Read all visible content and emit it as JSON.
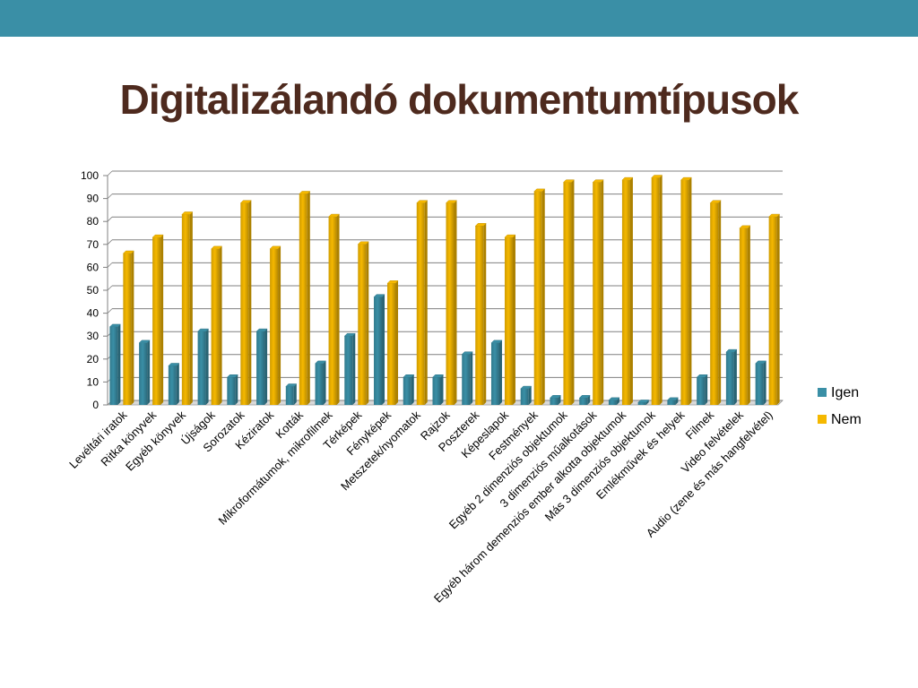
{
  "slide": {
    "title": "Digitalizálandó dokumentumtípusok",
    "accent_color": "#3a8fa6",
    "title_color": "#4e2a1e"
  },
  "chart_data": {
    "type": "bar",
    "title": "",
    "xlabel": "",
    "ylabel": "",
    "ylim": [
      0,
      100
    ],
    "yticks": [
      0,
      10,
      20,
      30,
      40,
      50,
      60,
      70,
      80,
      90,
      100
    ],
    "grid": true,
    "legend_position": "right",
    "categories": [
      "Levéltári iratok",
      "Ritka könyvek",
      "Egyéb könyvek",
      "Újságok",
      "Sorozatok",
      "Kéziratok",
      "Kották",
      "Mikroformátumok, mikrofilmek",
      "Térképek",
      "Fényképek",
      "Metszetek/nyomatok",
      "Rajzok",
      "Poszterek",
      "Képeslapok",
      "Festmények",
      "Egyéb 2 dimenziós objektumok",
      "3 dimenziós műalkotások",
      "Egyéb három demenziós ember alkotta objektumok",
      "Más 3 dimenziós objektumok",
      "Emlékművek és helyek",
      "Filmek",
      "Video felvételek",
      "Audio (zene és más hangfelvétel)"
    ],
    "series": [
      {
        "name": "Igen",
        "color": "#3a8fa6",
        "values": [
          34,
          27,
          17,
          32,
          12,
          32,
          8,
          18,
          30,
          47,
          12,
          12,
          22,
          27,
          7,
          3,
          3,
          2,
          1,
          2,
          12,
          23,
          18
        ]
      },
      {
        "name": "Nem",
        "color": "#f5b800",
        "values": [
          66,
          73,
          83,
          68,
          88,
          68,
          92,
          82,
          70,
          53,
          88,
          88,
          78,
          73,
          93,
          97,
          97,
          98,
          99,
          98,
          88,
          77,
          82
        ]
      }
    ]
  }
}
